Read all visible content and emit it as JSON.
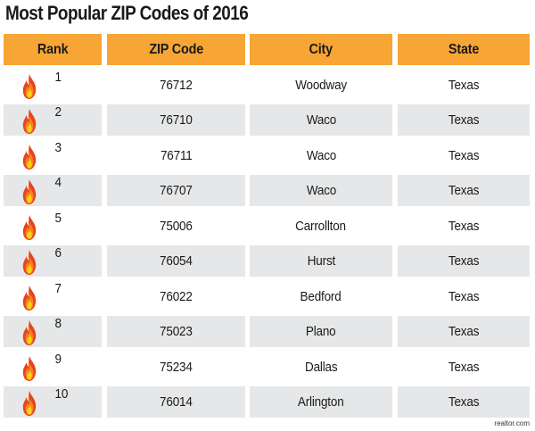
{
  "title": "Most Popular ZIP Codes of 2016",
  "columns": [
    "Rank",
    "ZIP Code",
    "City",
    "State"
  ],
  "rows": [
    {
      "rank": "1",
      "zip": "76712",
      "city": "Woodway",
      "state": "Texas"
    },
    {
      "rank": "2",
      "zip": "76710",
      "city": "Waco",
      "state": "Texas"
    },
    {
      "rank": "3",
      "zip": "76711",
      "city": "Waco",
      "state": "Texas"
    },
    {
      "rank": "4",
      "zip": "76707",
      "city": "Waco",
      "state": "Texas"
    },
    {
      "rank": "5",
      "zip": "75006",
      "city": "Carrollton",
      "state": "Texas"
    },
    {
      "rank": "6",
      "zip": "76054",
      "city": "Hurst",
      "state": "Texas"
    },
    {
      "rank": "7",
      "zip": "76022",
      "city": "Bedford",
      "state": "Texas"
    },
    {
      "rank": "8",
      "zip": "75023",
      "city": "Plano",
      "state": "Texas"
    },
    {
      "rank": "9",
      "zip": "75234",
      "city": "Dallas",
      "state": "Texas"
    },
    {
      "rank": "10",
      "zip": "76014",
      "city": "Arlington",
      "state": "Texas"
    }
  ],
  "icons": {
    "rank_marker": "flame-icon"
  },
  "colors": {
    "header": "#f7a535",
    "alt_row": "#e6e7e8",
    "flame_outer": "#e8431c",
    "flame_mid": "#f58220",
    "flame_inner": "#fcd116"
  },
  "source": "realtor.com"
}
